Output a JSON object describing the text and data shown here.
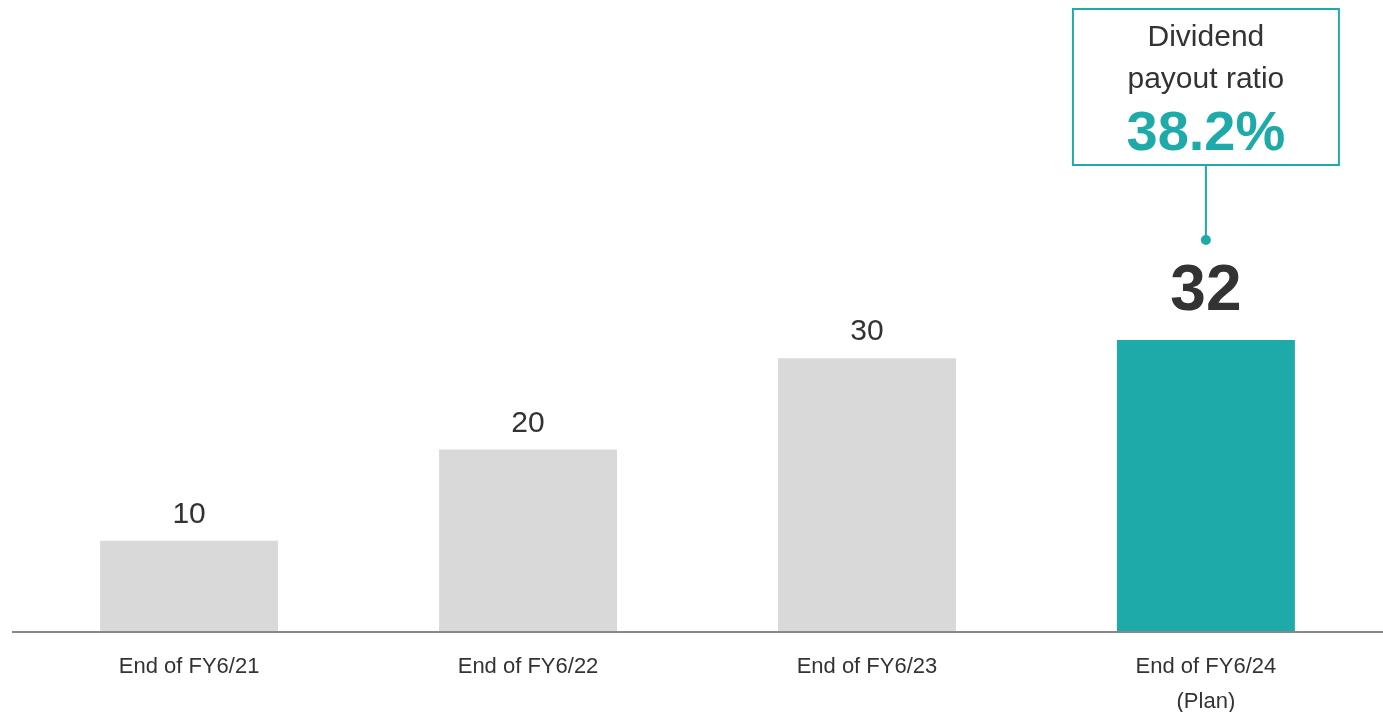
{
  "chart_data": {
    "type": "bar",
    "categories": [
      "End of FY6/21",
      "End of FY6/22",
      "End of FY6/23",
      "End of FY6/24\n(Plan)"
    ],
    "values": [
      10,
      20,
      30,
      32
    ],
    "colors": [
      "#d9d9d9",
      "#d9d9d9",
      "#d9d9d9",
      "#1eaaa8"
    ],
    "data_labels": true,
    "annotations": [
      "Dividend\npayout ratio\n38.2%"
    ]
  }
}
